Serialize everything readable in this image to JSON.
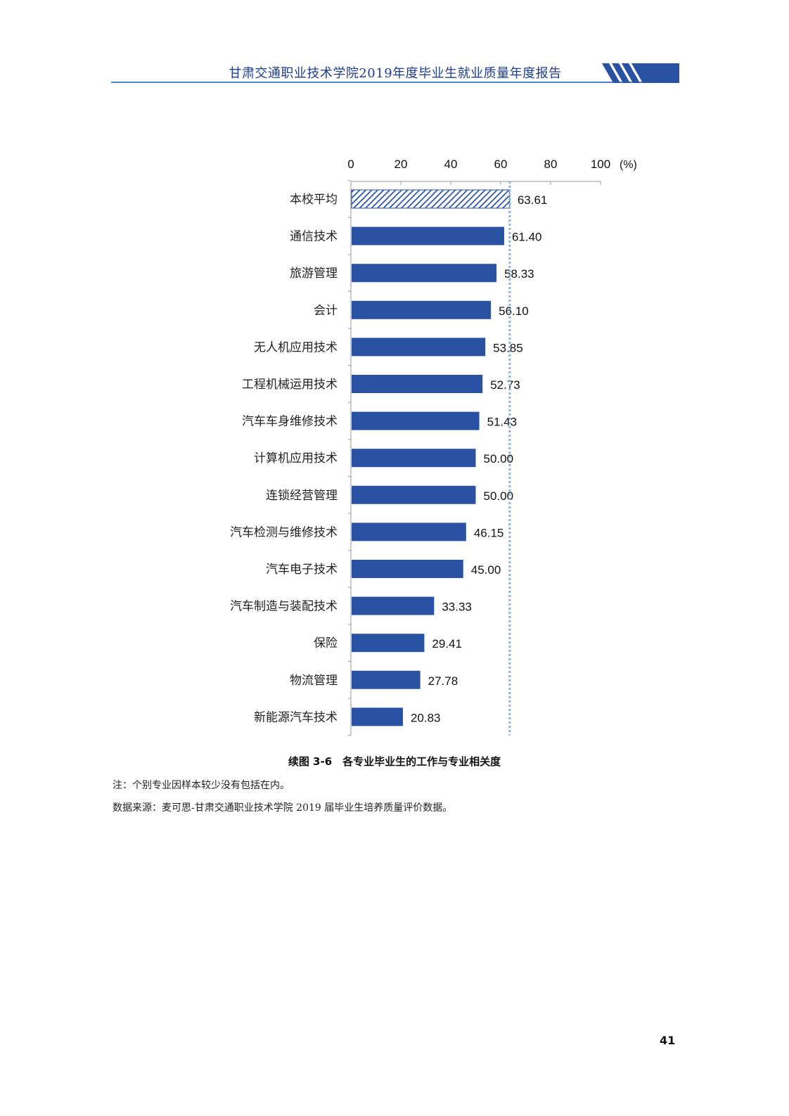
{
  "header": {
    "title": "甘肃交通职业技术学院2019年度毕业生就业质量年度报告"
  },
  "chart_data": {
    "type": "bar",
    "orientation": "horizontal",
    "categories": [
      "本校平均",
      "通信技术",
      "旅游管理",
      "会计",
      "无人机应用技术",
      "工程机械运用技术",
      "汽车车身维修技术",
      "计算机应用技术",
      "连锁经营管理",
      "汽车检测与维修技术",
      "汽车电子技术",
      "汽车制造与装配技术",
      "保险",
      "物流管理",
      "新能源汽车技术"
    ],
    "values": [
      63.61,
      61.4,
      58.33,
      56.1,
      53.85,
      52.73,
      51.43,
      50.0,
      50.0,
      46.15,
      45.0,
      33.33,
      29.41,
      27.78,
      20.83
    ],
    "value_labels": [
      "63.61",
      "61.40",
      "58.33",
      "56.10",
      "53.85",
      "52.73",
      "51.43",
      "50.00",
      "50.00",
      "46.15",
      "45.00",
      "33.33",
      "29.41",
      "27.78",
      "20.83"
    ],
    "x_ticks": [
      "0",
      "20",
      "40",
      "60",
      "80",
      "100"
    ],
    "x_unit": "(%)",
    "xlim": [
      0,
      100
    ],
    "axis_position": "top",
    "reference_line": 63.61,
    "highlight_category": "本校平均",
    "colors": {
      "bar": "#2a52a3",
      "highlight": "#2a52a3",
      "reference_line": "#8fb0d8",
      "axis": "#999999"
    }
  },
  "caption": "续图 3-6　各专业毕业生的工作与专业相关度",
  "notes": {
    "note1": "注：个别专业因样本较少没有包括在内。",
    "note2": "数据来源：麦可思-甘肃交通职业技术学院 2019 届毕业生培养质量评价数据。"
  },
  "page_number": "41"
}
